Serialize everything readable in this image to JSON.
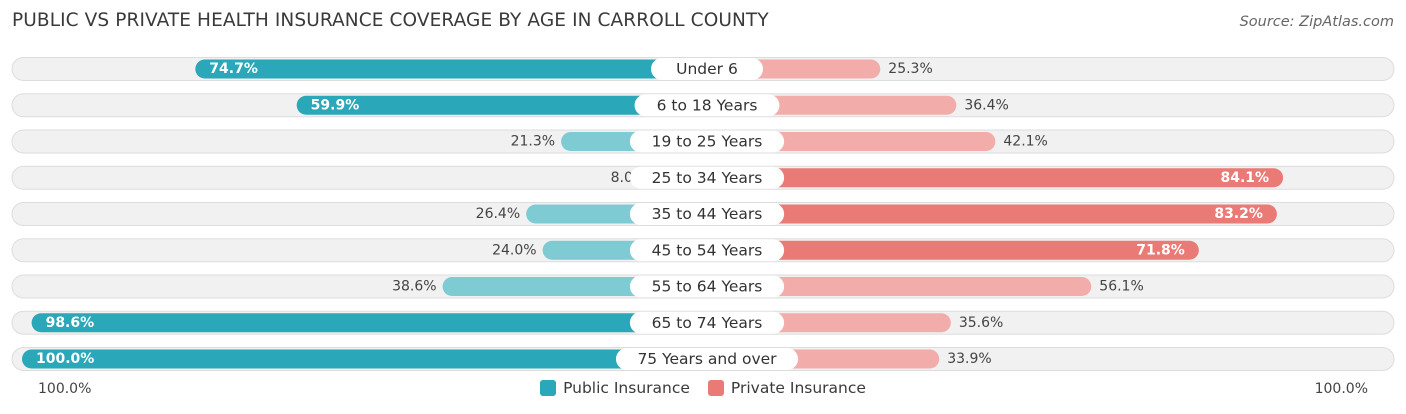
{
  "title": "PUBLIC VS PRIVATE HEALTH INSURANCE COVERAGE BY AGE IN CARROLL COUNTY",
  "source": "Source: ZipAtlas.com",
  "colors": {
    "public_strong": "#2aa7b8",
    "public_light": "#7ecbd4",
    "private_strong": "#e97a76",
    "private_light": "#f2adab",
    "track": "#f1f1f1",
    "track_border": "#dddddd"
  },
  "axis": {
    "left_label": "100.0%",
    "right_label": "100.0%"
  },
  "legend": {
    "public": "Public Insurance",
    "private": "Private Insurance"
  },
  "chart_data": {
    "type": "bar",
    "orientation": "horizontal-diverging",
    "categories": [
      "Under 6",
      "6 to 18 Years",
      "19 to 25 Years",
      "25 to 34 Years",
      "35 to 44 Years",
      "45 to 54 Years",
      "55 to 64 Years",
      "65 to 74 Years",
      "75 Years and over"
    ],
    "series": [
      {
        "name": "Public Insurance",
        "values": [
          74.7,
          59.9,
          21.3,
          8.0,
          26.4,
          24.0,
          38.6,
          98.6,
          100.0
        ],
        "labels": [
          "74.7%",
          "59.9%",
          "21.3%",
          "8.0%",
          "26.4%",
          "24.0%",
          "38.6%",
          "98.6%",
          "100.0%"
        ]
      },
      {
        "name": "Private Insurance",
        "values": [
          25.3,
          36.4,
          42.1,
          84.1,
          83.2,
          71.8,
          56.1,
          35.6,
          33.9
        ],
        "labels": [
          "25.3%",
          "36.4%",
          "42.1%",
          "84.1%",
          "83.2%",
          "71.8%",
          "56.1%",
          "35.6%",
          "33.9%"
        ]
      }
    ],
    "xlim": [
      0,
      100
    ]
  }
}
